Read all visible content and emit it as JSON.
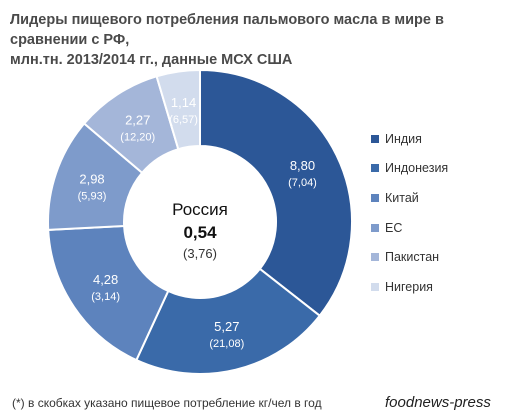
{
  "title": {
    "line1": "Лидеры пищевого потребления пальмового масла в мире в сравнении с РФ,",
    "line2": "млн.тн. 2013/2014 гг., данные МСХ США"
  },
  "center": {
    "label": "Россия",
    "value": "0,54",
    "sub": "(3,76)"
  },
  "footnote": "(*) в скобках указано пищевое потребление кг/чел в год",
  "watermark": "foodnews-press",
  "chart_data": {
    "type": "pie",
    "donut": true,
    "title": "Лидеры пищевого потребления пальмового масла в мире в сравнении с РФ, млн.тн. 2013/2014 гг., данные МСХ США",
    "categories": [
      "Индия",
      "Индонезия",
      "Китай",
      "ЕС",
      "Пакистан",
      "Нигерия"
    ],
    "values": [
      8.8,
      5.27,
      4.28,
      2.98,
      2.27,
      1.14
    ],
    "value_labels": [
      "8,80",
      "5,27",
      "4,28",
      "2,98",
      "2,27",
      "1,14"
    ],
    "per_capita_labels": [
      "(7,04)",
      "(21,08)",
      "(3,14)",
      "(5,93)",
      "(12,20)",
      "(6,57)"
    ],
    "colors": [
      "#2c5797",
      "#3a6aa9",
      "#5d83bd",
      "#7e9bcb",
      "#a4b6d9",
      "#d2dced"
    ],
    "legend_placement": "right"
  }
}
